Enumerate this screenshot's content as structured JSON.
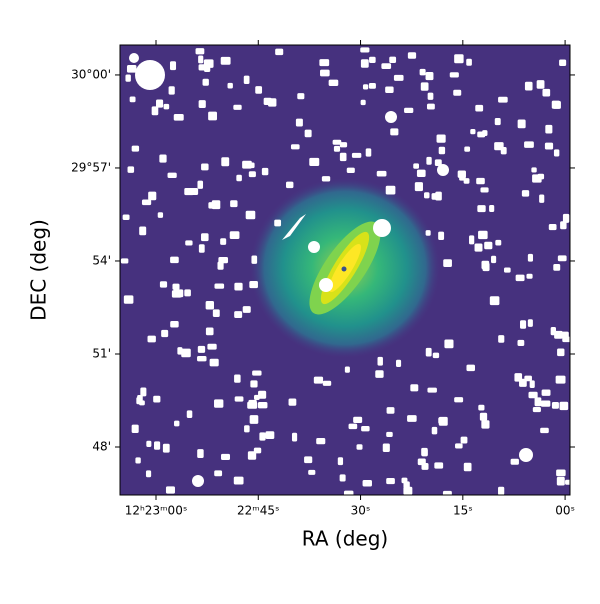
{
  "chart_data": {
    "type": "image",
    "xlabel": "RA (deg)",
    "ylabel": "DEC (deg)",
    "xlim": [
      185.772,
      185.497
    ],
    "ylim": [
      29.7742,
      30.0161
    ],
    "xticks": [
      {
        "value": 185.75,
        "label": "12ʰ23ᵐ00ˢ"
      },
      {
        "value": 185.6875,
        "label": "22ᵐ45ˢ"
      },
      {
        "value": 185.625,
        "label": "30ˢ"
      },
      {
        "value": 185.5625,
        "label": "15ˢ"
      },
      {
        "value": 185.5,
        "label": "00ˢ"
      }
    ],
    "yticks": [
      {
        "value": 30.0,
        "label": "30°00'"
      },
      {
        "value": 29.95,
        "label": "29°57'"
      },
      {
        "value": 29.9,
        "label": "54'"
      },
      {
        "value": 29.85,
        "label": "51'"
      },
      {
        "value": 29.8,
        "label": "48'"
      }
    ],
    "grid": false
  }
}
